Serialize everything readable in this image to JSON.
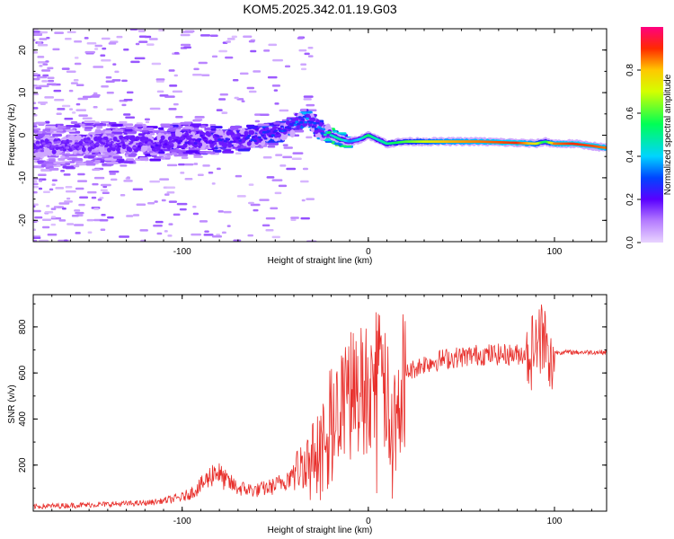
{
  "title": "KOM5.2025.342.01.19.G03",
  "colors": {
    "snr_line": "#e8302c",
    "axes": "#000000",
    "background": "#ffffff"
  },
  "chart_data": [
    {
      "type": "heatmap",
      "title": "KOM5.2025.342.01.19.G03",
      "xlabel": "Height of straight line (km)",
      "ylabel": "Frequency (Hz)",
      "xlim": [
        -180,
        128
      ],
      "ylim": [
        -25,
        25
      ],
      "xticks": [
        -100,
        0,
        100
      ],
      "yticks": [
        -20,
        -10,
        0,
        10,
        20
      ],
      "ridge": {
        "x": [
          -180,
          -150,
          -120,
          -100,
          -80,
          -60,
          -50,
          -40,
          -35,
          -30,
          -25,
          -20,
          -15,
          -10,
          -5,
          0,
          5,
          10,
          20,
          40,
          60,
          80,
          90,
          95,
          100,
          110,
          120,
          128
        ],
        "freq": [
          -3,
          -2,
          -2,
          -1,
          -1,
          -0.5,
          0.5,
          2,
          4,
          3,
          1,
          0,
          -1,
          -1.5,
          -1,
          0,
          -1,
          -2,
          -1.5,
          -1.5,
          -1.5,
          -1.8,
          -2,
          -1.5,
          -2,
          -2,
          -2.5,
          -3
        ],
        "amplitude": [
          0.12,
          0.14,
          0.16,
          0.18,
          0.2,
          0.22,
          0.25,
          0.28,
          0.3,
          0.28,
          0.32,
          0.45,
          0.5,
          0.35,
          0.4,
          0.55,
          0.45,
          0.5,
          0.6,
          0.8,
          0.85,
          0.9,
          0.75,
          0.5,
          0.85,
          0.9,
          0.88,
          0.85
        ]
      },
      "colorbar": {
        "label": "Normalized spectral amplitude",
        "range": [
          0,
          1
        ],
        "ticks": [
          "0.0",
          "0.2",
          "0.4",
          "0.6",
          "0.8"
        ],
        "tick_values": [
          0,
          0.2,
          0.4,
          0.6,
          0.8
        ],
        "colormap": "rainbow (lavender - violet - blue - cyan - green - yellow - orange - red - magenta)"
      }
    },
    {
      "type": "line",
      "xlabel": "Height of straight line (km)",
      "ylabel": "SNR (v/v)",
      "xlim": [
        -180,
        128
      ],
      "ylim": [
        0,
        940
      ],
      "xticks": [
        -100,
        0,
        100
      ],
      "yticks": [
        200,
        400,
        600,
        800
      ],
      "series": [
        {
          "name": "SNR",
          "x": [
            -180,
            -160,
            -140,
            -120,
            -110,
            -100,
            -95,
            -90,
            -85,
            -82,
            -78,
            -70,
            -60,
            -50,
            -40,
            -35,
            -30,
            -25,
            -22,
            -20,
            -18,
            -15,
            -10,
            -5,
            0,
            5,
            10,
            12,
            15,
            20,
            25,
            30,
            40,
            50,
            60,
            70,
            80,
            85,
            90,
            92,
            95,
            97,
            100,
            110,
            120,
            128
          ],
          "y": [
            20,
            25,
            30,
            35,
            45,
            60,
            80,
            110,
            150,
            180,
            140,
            100,
            90,
            110,
            160,
            210,
            250,
            300,
            380,
            420,
            380,
            440,
            480,
            520,
            560,
            570,
            520,
            300,
            500,
            600,
            620,
            640,
            660,
            670,
            680,
            680,
            680,
            690,
            700,
            760,
            720,
            600,
            690,
            690,
            690,
            690
          ],
          "color": "#e8302c"
        }
      ]
    }
  ]
}
